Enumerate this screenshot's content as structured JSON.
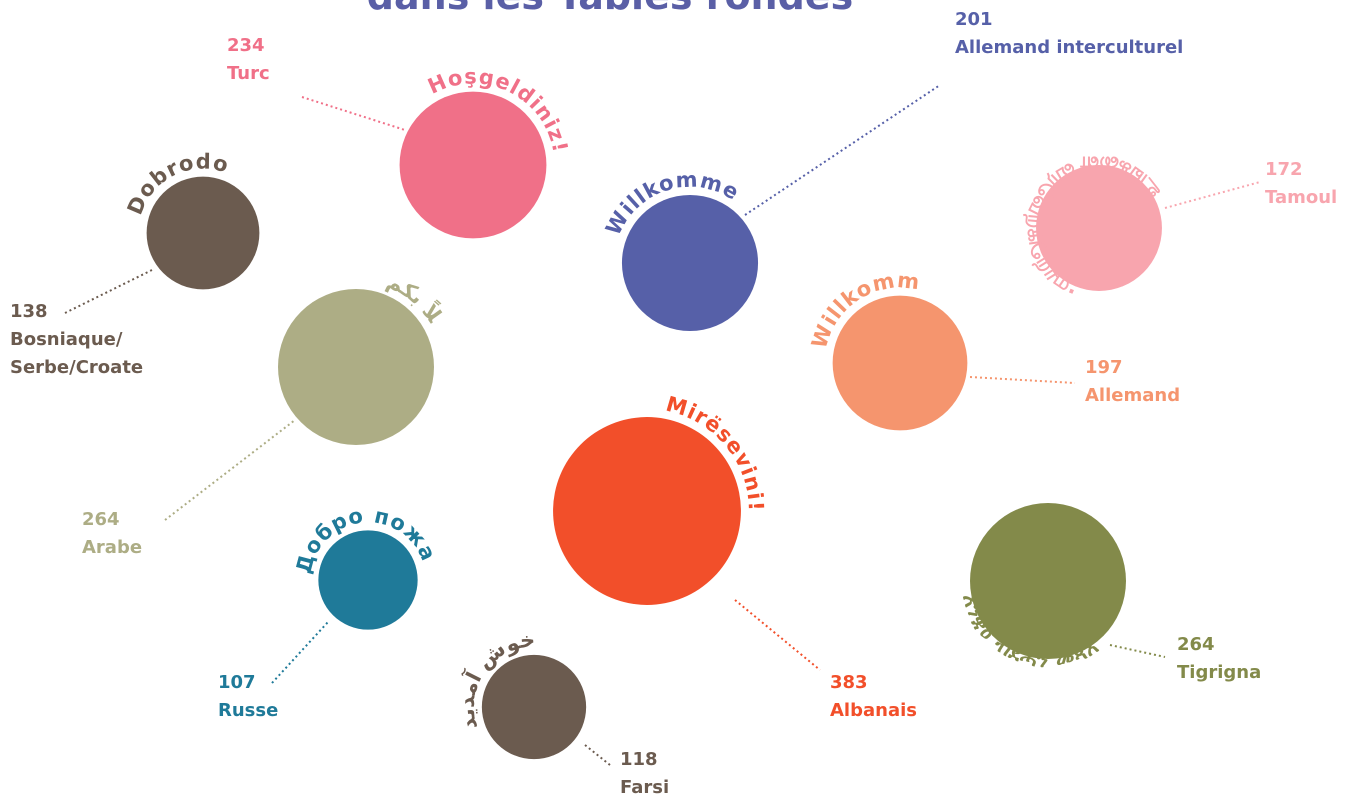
{
  "chart_data": {
    "type": "bubble",
    "title": "dans les Tables rondes",
    "categories": [
      "Turc",
      "Bosniaque/ Serbe/Croate",
      "Allemand interculturel",
      "Tamoul",
      "Arabe",
      "Allemand",
      "Albanais",
      "Russe",
      "Tigrigna",
      "Farsi"
    ],
    "values": [
      234,
      138,
      201,
      172,
      264,
      197,
      383,
      107,
      264,
      118
    ],
    "greetings": [
      "Hoşgeldiniz!",
      "Dobrodošli",
      "Willkommen",
      "உங்களை வரவேற்கிறோம்.",
      "أهلاً بكم",
      "Willkommen",
      "Mirësevini!",
      "Добро пожаловать",
      "እንቋዕ ብደሓን መጻእኹም",
      "خوش آمدید"
    ],
    "colors": [
      "#f07088",
      "#6b5b4f",
      "#5660a8",
      "#f8a5ae",
      "#adad85",
      "#f5956e",
      "#f24f2a",
      "#1f7a99",
      "#838a4a",
      "#6b5b4f"
    ]
  }
}
